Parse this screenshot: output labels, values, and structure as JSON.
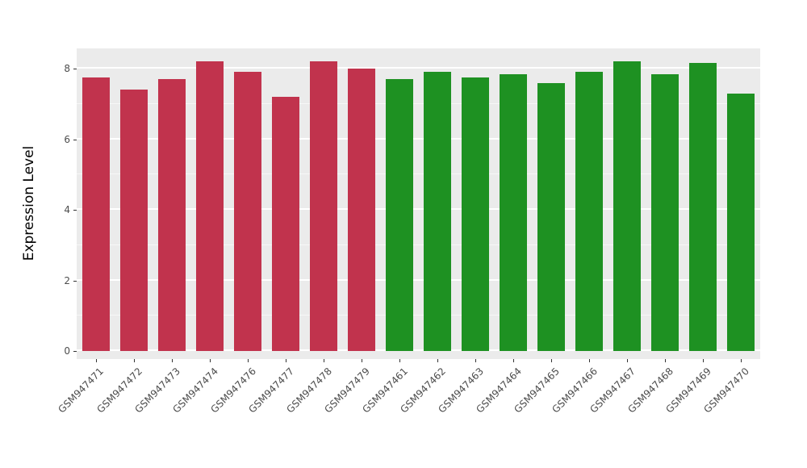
{
  "chart_data": {
    "type": "bar",
    "title": "",
    "xlabel": "",
    "ylabel": "Expression Level",
    "ylim": [
      0,
      8.6
    ],
    "yticks": [
      0,
      2,
      4,
      6,
      8
    ],
    "minor_ticks": [
      1,
      3,
      5,
      7
    ],
    "grid": true,
    "legend_position": "none",
    "categories": [
      "GSM947471",
      "GSM947472",
      "GSM947473",
      "GSM947474",
      "GSM947476",
      "GSM947477",
      "GSM947478",
      "GSM947479",
      "GSM947461",
      "GSM947462",
      "GSM947463",
      "GSM947464",
      "GSM947465",
      "GSM947466",
      "GSM947467",
      "GSM947468",
      "GSM947469",
      "GSM947470"
    ],
    "values": [
      7.75,
      7.4,
      7.7,
      8.2,
      7.9,
      7.2,
      8.2,
      8.0,
      7.7,
      7.9,
      7.75,
      7.85,
      7.6,
      7.9,
      8.2,
      7.85,
      8.15,
      7.3
    ],
    "groups": [
      "red",
      "red",
      "red",
      "red",
      "red",
      "red",
      "red",
      "red",
      "green",
      "green",
      "green",
      "green",
      "green",
      "green",
      "green",
      "green",
      "green",
      "green"
    ],
    "colors": {
      "red": "#C1334D",
      "green": "#1E9122",
      "panel_background": "#EBEBEB",
      "grid": "#FFFFFF",
      "axis_text": "#4D4D4D"
    }
  }
}
